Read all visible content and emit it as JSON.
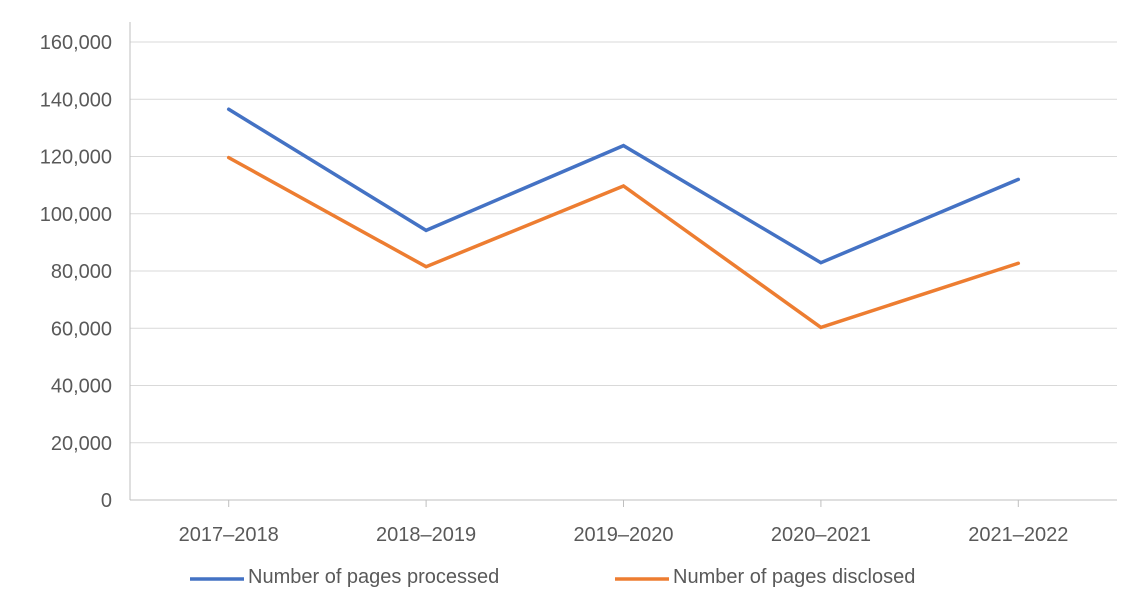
{
  "chart_data": {
    "type": "line",
    "title": "",
    "xlabel": "",
    "ylabel": "",
    "categories": [
      "2017–2018",
      "2018–2019",
      "2019–2020",
      "2020–2021",
      "2021–2022"
    ],
    "ylim": [
      0,
      160000
    ],
    "yticks": [
      0,
      20000,
      40000,
      60000,
      80000,
      100000,
      120000,
      140000,
      160000
    ],
    "ytick_labels": [
      "0",
      "20,000",
      "40,000",
      "60,000",
      "80,000",
      "100,000",
      "120,000",
      "140,000",
      "160,000"
    ],
    "grid": true,
    "legend_position": "bottom",
    "series": [
      {
        "name": "Number of pages processed",
        "color": "#4472C4",
        "values": [
          136500,
          94200,
          123800,
          82900,
          112000
        ]
      },
      {
        "name": "Number of pages disclosed",
        "color": "#ED7D31",
        "values": [
          119600,
          81500,
          109700,
          60300,
          82700
        ]
      }
    ]
  }
}
